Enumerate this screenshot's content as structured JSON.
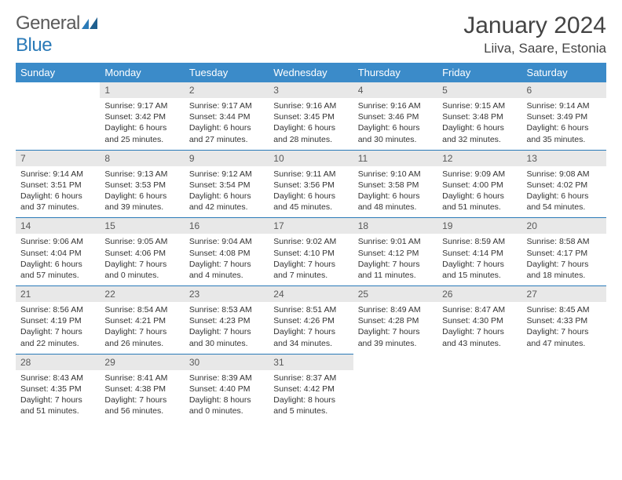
{
  "logo": {
    "text_gray": "General",
    "text_blue": "Blue"
  },
  "title": "January 2024",
  "location": "Liiva, Saare, Estonia",
  "colors": {
    "header_bg": "#3b8bc9",
    "border": "#2a7ab8",
    "daynum_bg": "#e8e8e8",
    "daynum_color": "#595959",
    "text": "#333333"
  },
  "day_headers": [
    "Sunday",
    "Monday",
    "Tuesday",
    "Wednesday",
    "Thursday",
    "Friday",
    "Saturday"
  ],
  "weeks": [
    [
      null,
      {
        "n": "1",
        "sr": "Sunrise: 9:17 AM",
        "ss": "Sunset: 3:42 PM",
        "dl": "Daylight: 6 hours and 25 minutes."
      },
      {
        "n": "2",
        "sr": "Sunrise: 9:17 AM",
        "ss": "Sunset: 3:44 PM",
        "dl": "Daylight: 6 hours and 27 minutes."
      },
      {
        "n": "3",
        "sr": "Sunrise: 9:16 AM",
        "ss": "Sunset: 3:45 PM",
        "dl": "Daylight: 6 hours and 28 minutes."
      },
      {
        "n": "4",
        "sr": "Sunrise: 9:16 AM",
        "ss": "Sunset: 3:46 PM",
        "dl": "Daylight: 6 hours and 30 minutes."
      },
      {
        "n": "5",
        "sr": "Sunrise: 9:15 AM",
        "ss": "Sunset: 3:48 PM",
        "dl": "Daylight: 6 hours and 32 minutes."
      },
      {
        "n": "6",
        "sr": "Sunrise: 9:14 AM",
        "ss": "Sunset: 3:49 PM",
        "dl": "Daylight: 6 hours and 35 minutes."
      }
    ],
    [
      {
        "n": "7",
        "sr": "Sunrise: 9:14 AM",
        "ss": "Sunset: 3:51 PM",
        "dl": "Daylight: 6 hours and 37 minutes."
      },
      {
        "n": "8",
        "sr": "Sunrise: 9:13 AM",
        "ss": "Sunset: 3:53 PM",
        "dl": "Daylight: 6 hours and 39 minutes."
      },
      {
        "n": "9",
        "sr": "Sunrise: 9:12 AM",
        "ss": "Sunset: 3:54 PM",
        "dl": "Daylight: 6 hours and 42 minutes."
      },
      {
        "n": "10",
        "sr": "Sunrise: 9:11 AM",
        "ss": "Sunset: 3:56 PM",
        "dl": "Daylight: 6 hours and 45 minutes."
      },
      {
        "n": "11",
        "sr": "Sunrise: 9:10 AM",
        "ss": "Sunset: 3:58 PM",
        "dl": "Daylight: 6 hours and 48 minutes."
      },
      {
        "n": "12",
        "sr": "Sunrise: 9:09 AM",
        "ss": "Sunset: 4:00 PM",
        "dl": "Daylight: 6 hours and 51 minutes."
      },
      {
        "n": "13",
        "sr": "Sunrise: 9:08 AM",
        "ss": "Sunset: 4:02 PM",
        "dl": "Daylight: 6 hours and 54 minutes."
      }
    ],
    [
      {
        "n": "14",
        "sr": "Sunrise: 9:06 AM",
        "ss": "Sunset: 4:04 PM",
        "dl": "Daylight: 6 hours and 57 minutes."
      },
      {
        "n": "15",
        "sr": "Sunrise: 9:05 AM",
        "ss": "Sunset: 4:06 PM",
        "dl": "Daylight: 7 hours and 0 minutes."
      },
      {
        "n": "16",
        "sr": "Sunrise: 9:04 AM",
        "ss": "Sunset: 4:08 PM",
        "dl": "Daylight: 7 hours and 4 minutes."
      },
      {
        "n": "17",
        "sr": "Sunrise: 9:02 AM",
        "ss": "Sunset: 4:10 PM",
        "dl": "Daylight: 7 hours and 7 minutes."
      },
      {
        "n": "18",
        "sr": "Sunrise: 9:01 AM",
        "ss": "Sunset: 4:12 PM",
        "dl": "Daylight: 7 hours and 11 minutes."
      },
      {
        "n": "19",
        "sr": "Sunrise: 8:59 AM",
        "ss": "Sunset: 4:14 PM",
        "dl": "Daylight: 7 hours and 15 minutes."
      },
      {
        "n": "20",
        "sr": "Sunrise: 8:58 AM",
        "ss": "Sunset: 4:17 PM",
        "dl": "Daylight: 7 hours and 18 minutes."
      }
    ],
    [
      {
        "n": "21",
        "sr": "Sunrise: 8:56 AM",
        "ss": "Sunset: 4:19 PM",
        "dl": "Daylight: 7 hours and 22 minutes."
      },
      {
        "n": "22",
        "sr": "Sunrise: 8:54 AM",
        "ss": "Sunset: 4:21 PM",
        "dl": "Daylight: 7 hours and 26 minutes."
      },
      {
        "n": "23",
        "sr": "Sunrise: 8:53 AM",
        "ss": "Sunset: 4:23 PM",
        "dl": "Daylight: 7 hours and 30 minutes."
      },
      {
        "n": "24",
        "sr": "Sunrise: 8:51 AM",
        "ss": "Sunset: 4:26 PM",
        "dl": "Daylight: 7 hours and 34 minutes."
      },
      {
        "n": "25",
        "sr": "Sunrise: 8:49 AM",
        "ss": "Sunset: 4:28 PM",
        "dl": "Daylight: 7 hours and 39 minutes."
      },
      {
        "n": "26",
        "sr": "Sunrise: 8:47 AM",
        "ss": "Sunset: 4:30 PM",
        "dl": "Daylight: 7 hours and 43 minutes."
      },
      {
        "n": "27",
        "sr": "Sunrise: 8:45 AM",
        "ss": "Sunset: 4:33 PM",
        "dl": "Daylight: 7 hours and 47 minutes."
      }
    ],
    [
      {
        "n": "28",
        "sr": "Sunrise: 8:43 AM",
        "ss": "Sunset: 4:35 PM",
        "dl": "Daylight: 7 hours and 51 minutes."
      },
      {
        "n": "29",
        "sr": "Sunrise: 8:41 AM",
        "ss": "Sunset: 4:38 PM",
        "dl": "Daylight: 7 hours and 56 minutes."
      },
      {
        "n": "30",
        "sr": "Sunrise: 8:39 AM",
        "ss": "Sunset: 4:40 PM",
        "dl": "Daylight: 8 hours and 0 minutes."
      },
      {
        "n": "31",
        "sr": "Sunrise: 8:37 AM",
        "ss": "Sunset: 4:42 PM",
        "dl": "Daylight: 8 hours and 5 minutes."
      },
      null,
      null,
      null
    ]
  ]
}
